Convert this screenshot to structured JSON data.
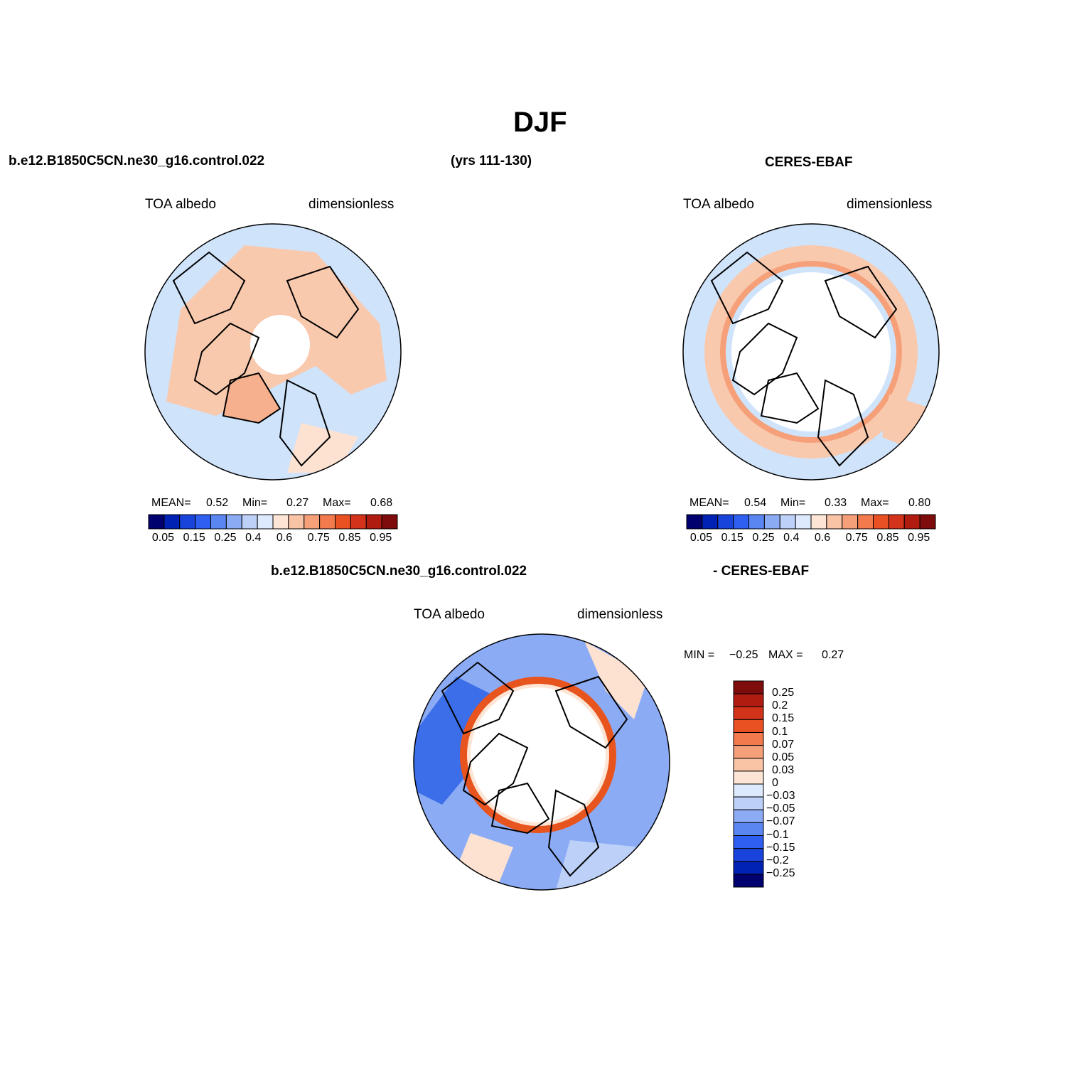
{
  "title": "DJF",
  "header": {
    "case_name": "b.e12.B1850C5CN.ne30_g16.control.022",
    "years": "(yrs 111-130)",
    "obs_name": "CERES-EBAF",
    "diff_case": "b.e12.B1850C5CN.ne30_g16.control.022",
    "diff_obs": "- CERES-EBAF"
  },
  "colors": {
    "ocean_blue": "#cfe3fb",
    "land_peach": "#f9c9ae",
    "strong_blue": "#3b6ee8",
    "strong_red": "#e8541e",
    "coast": "#000000"
  },
  "chart_data": [
    {
      "type": "heatmap",
      "name": "model",
      "left_label": "TOA albedo",
      "right_label": "dimensionless",
      "stats": {
        "mean_label": "MEAN=",
        "mean": "0.52",
        "min_label": "Min=",
        "min": "0.27",
        "max_label": "Max=",
        "max": "0.68"
      },
      "colorbar": {
        "colors": [
          "#00006e",
          "#0022b4",
          "#1944dc",
          "#2e5ff0",
          "#5a86f2",
          "#8cabf5",
          "#bcd0f8",
          "#dde9fc",
          "#fde5d5",
          "#f9c3a6",
          "#f6a07a",
          "#f27a4c",
          "#ea5122",
          "#d3331a",
          "#b01d10",
          "#7e0c0c"
        ],
        "labels": [
          "0.05",
          "0.15",
          "0.25",
          "0.4",
          "0.6",
          "0.75",
          "0.85",
          "0.95"
        ]
      }
    },
    {
      "type": "heatmap",
      "name": "obs",
      "left_label": "TOA albedo",
      "right_label": "dimensionless",
      "stats": {
        "mean_label": "MEAN=",
        "mean": "0.54",
        "min_label": "Min=",
        "min": "0.33",
        "max_label": "Max=",
        "max": "0.80"
      },
      "colorbar": {
        "colors": [
          "#00006e",
          "#0022b4",
          "#1944dc",
          "#2e5ff0",
          "#5a86f2",
          "#8cabf5",
          "#bcd0f8",
          "#dde9fc",
          "#fde5d5",
          "#f9c3a6",
          "#f6a07a",
          "#f27a4c",
          "#ea5122",
          "#d3331a",
          "#b01d10",
          "#7e0c0c"
        ],
        "labels": [
          "0.05",
          "0.15",
          "0.25",
          "0.4",
          "0.6",
          "0.75",
          "0.85",
          "0.95"
        ]
      }
    },
    {
      "type": "heatmap",
      "name": "difference",
      "left_label": "TOA albedo",
      "right_label": "dimensionless",
      "stats": {
        "min_label": "MIN =",
        "min": "−0.25",
        "max_label": "MAX =",
        "max": "0.27"
      },
      "colorbar": {
        "colors": [
          "#7e0c0c",
          "#b01d10",
          "#d3331a",
          "#ea5122",
          "#f27a4c",
          "#f6a07a",
          "#f9c3a6",
          "#fde5d5",
          "#dde9fc",
          "#bcd0f8",
          "#8cabf5",
          "#5a86f2",
          "#2e5ff0",
          "#1944dc",
          "#0022b4",
          "#00006e"
        ],
        "labels": [
          "0.25",
          "0.2",
          "0.15",
          "0.1",
          "0.07",
          "0.05",
          "0.03",
          "0",
          "−0.03",
          "−0.05",
          "−0.07",
          "−0.1",
          "−0.15",
          "−0.2",
          "−0.25"
        ]
      }
    }
  ]
}
